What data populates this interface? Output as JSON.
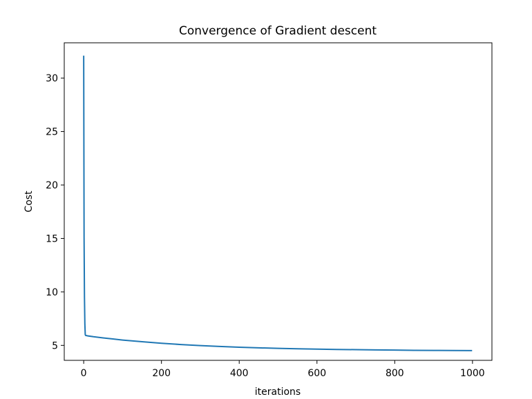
{
  "chart_data": {
    "type": "line",
    "title": "Convergence of Gradient descent",
    "xlabel": "iterations",
    "ylabel": "Cost",
    "xlim": [
      -50,
      1050
    ],
    "ylim": [
      3.6,
      33.3
    ],
    "xticks": [
      0,
      200,
      400,
      600,
      800,
      1000
    ],
    "yticks": [
      5,
      10,
      15,
      20,
      25,
      30
    ],
    "grid": false,
    "legend": "none",
    "series": [
      {
        "color": "#1f77b4",
        "x": [
          0,
          1,
          2,
          3,
          4,
          5,
          10,
          25,
          50,
          75,
          100,
          150,
          200,
          250,
          300,
          350,
          400,
          450,
          500,
          550,
          600,
          650,
          700,
          750,
          800,
          850,
          900,
          950,
          999
        ],
        "y": [
          32.1,
          15.0,
          9.5,
          7.0,
          6.0,
          5.93,
          5.89,
          5.81,
          5.7,
          5.6,
          5.5,
          5.34,
          5.2,
          5.08,
          4.98,
          4.9,
          4.83,
          4.77,
          4.72,
          4.68,
          4.65,
          4.62,
          4.6,
          4.58,
          4.56,
          4.54,
          4.53,
          4.52,
          4.51
        ]
      }
    ]
  }
}
